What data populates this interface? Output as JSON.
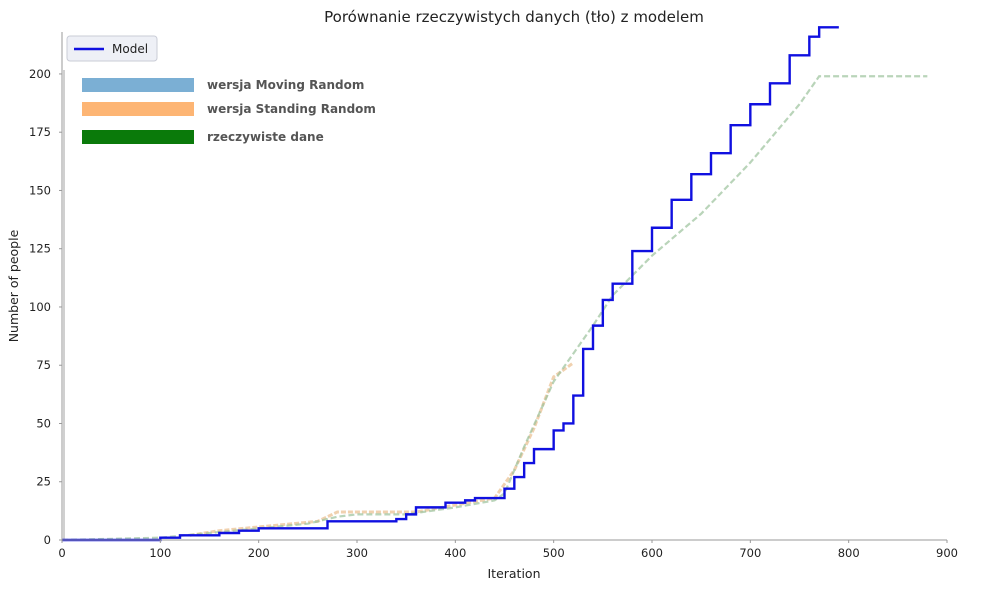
{
  "chart_data": {
    "type": "line",
    "title": "Porównanie rzeczywistych danych (tło) z modelem",
    "xlabel": "Iteration",
    "ylabel": "Number of people",
    "xlim": [
      0,
      900
    ],
    "ylim": [
      0,
      218
    ],
    "xticks": [
      0,
      100,
      200,
      300,
      400,
      500,
      600,
      700,
      800,
      900
    ],
    "yticks": [
      0,
      25,
      50,
      75,
      100,
      125,
      150,
      175,
      200
    ],
    "grid": false,
    "legend": {
      "position": "top-left",
      "entries": [
        "Model"
      ]
    },
    "background_legend": {
      "entries": [
        "wersja Moving Random",
        "wersja Standing Random",
        "rzeczywiste dane"
      ],
      "colors": [
        "#7bafd4",
        "#fdb574",
        "#0a7a0a"
      ]
    },
    "series": [
      {
        "name": "Model",
        "color": "#1010e0",
        "x": [
          0,
          95,
          100,
          110,
          120,
          140,
          160,
          170,
          180,
          190,
          200,
          260,
          270,
          290,
          340,
          350,
          360,
          370,
          390,
          410,
          420,
          440,
          450,
          460,
          470,
          480,
          500,
          510,
          520,
          530,
          540,
          550,
          560,
          580,
          600,
          620,
          640,
          660,
          680,
          700,
          720,
          740,
          760,
          770,
          790
        ],
        "y": [
          0,
          0,
          1,
          1,
          2,
          2,
          3,
          3,
          4,
          4,
          5,
          5,
          8,
          8,
          9,
          11,
          14,
          14,
          16,
          17,
          18,
          18,
          22,
          27,
          33,
          39,
          47,
          50,
          62,
          82,
          92,
          103,
          110,
          124,
          134,
          146,
          157,
          166,
          178,
          187,
          196,
          208,
          216,
          220,
          220
        ]
      },
      {
        "name": "rzeczywiste dane (tło)",
        "color": "#9bc29b",
        "x": [
          0,
          100,
          150,
          200,
          250,
          280,
          300,
          350,
          400,
          440,
          450,
          470,
          500,
          520,
          540,
          560,
          600,
          650,
          700,
          750,
          770,
          880
        ],
        "y": [
          0,
          1,
          3,
          5,
          7,
          10,
          11,
          11,
          14,
          17,
          20,
          40,
          68,
          80,
          92,
          105,
          122,
          140,
          162,
          187,
          199,
          199
        ]
      },
      {
        "name": "wersja Standing Random (tło)",
        "color": "#e8b884",
        "x": [
          130,
          160,
          260,
          280,
          360,
          440,
          460,
          480,
          500,
          520
        ],
        "y": [
          2,
          4,
          8,
          12,
          12,
          18,
          30,
          48,
          70,
          76
        ]
      }
    ]
  }
}
